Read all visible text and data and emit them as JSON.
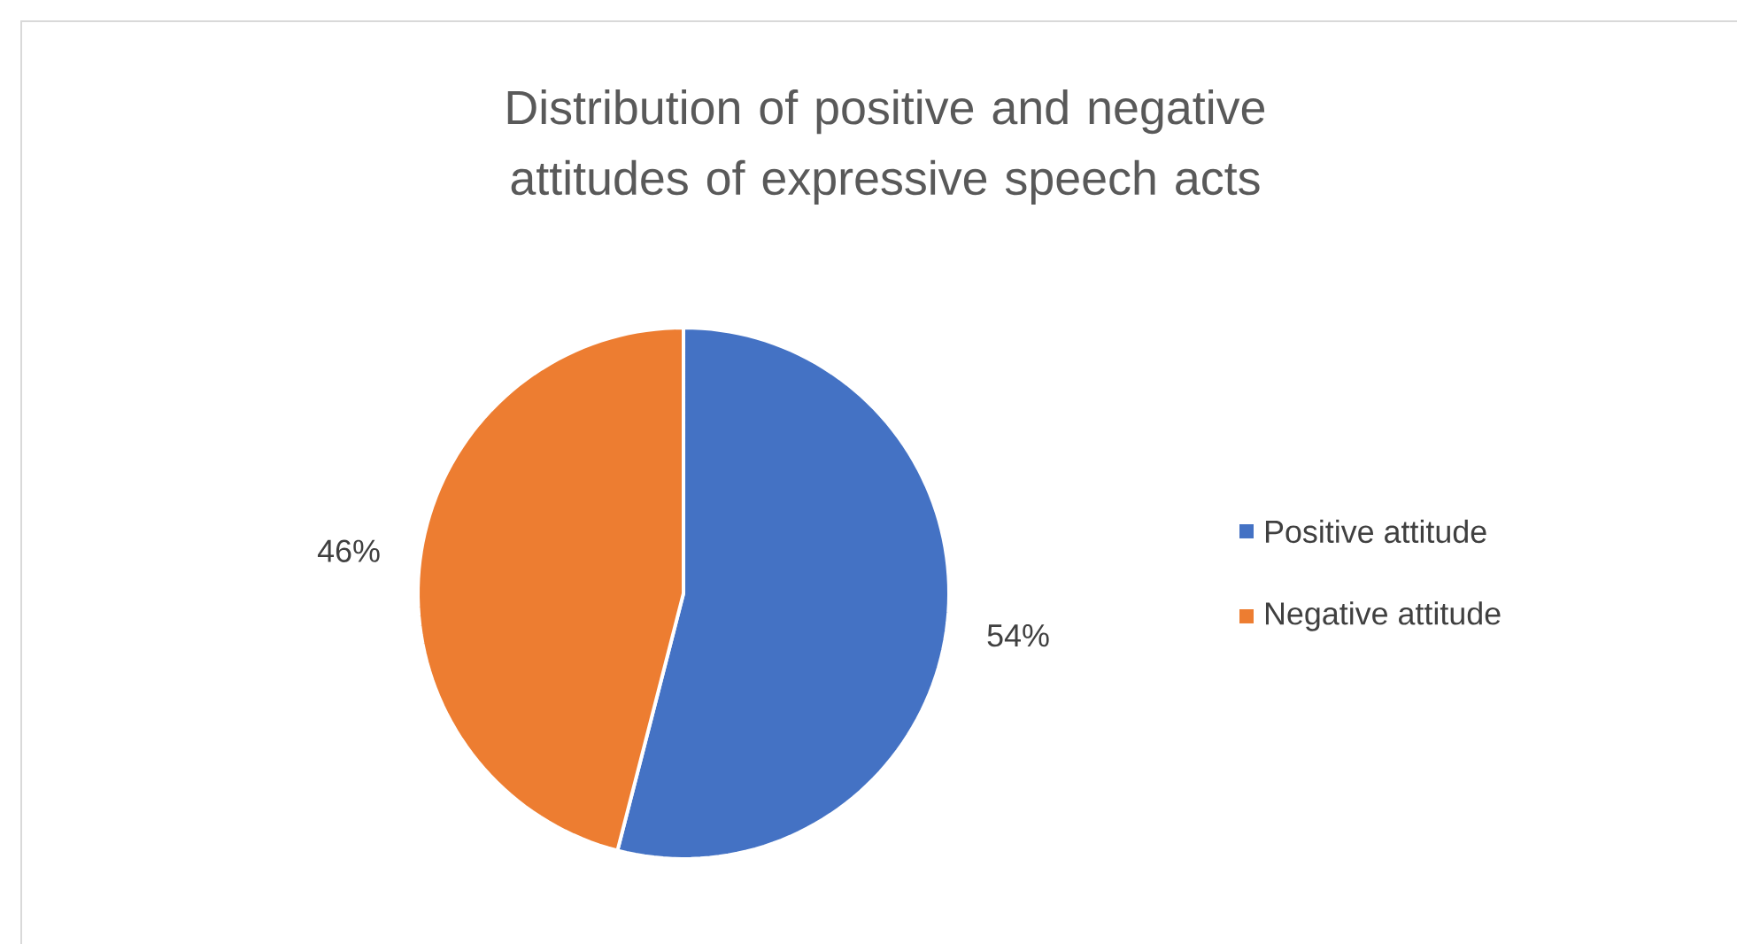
{
  "chart_data": {
    "type": "pie",
    "title": "Distribution of positive and negative attitudes of expressive speech acts",
    "categories": [
      "Positive attitude",
      "Negative attitude"
    ],
    "values": [
      54,
      46
    ],
    "colors": [
      "#4472c4",
      "#ed7d31"
    ],
    "value_labels": [
      "54%",
      "46%"
    ],
    "legend": "right"
  }
}
